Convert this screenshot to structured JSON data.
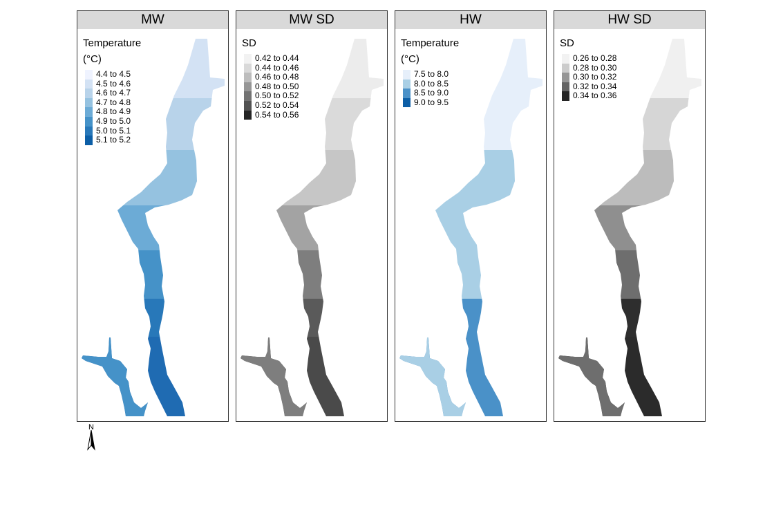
{
  "panels": [
    {
      "title": "MW",
      "legend": {
        "title_lines": [
          "Temperature",
          "(°C)"
        ],
        "items": [
          {
            "label": "4.4 to 4.5",
            "color": "#eff3ff"
          },
          {
            "label": "4.5 to 4.6",
            "color": "#d3e2f4"
          },
          {
            "label": "4.6 to 4.7",
            "color": "#b8d3ea"
          },
          {
            "label": "4.7 to 4.8",
            "color": "#95c2e0"
          },
          {
            "label": "4.8 to 4.9",
            "color": "#6cabd6"
          },
          {
            "label": "4.9 to 5.0",
            "color": "#4592c8"
          },
          {
            "label": "5.0 to 5.1",
            "color": "#2878b9"
          },
          {
            "label": "5.1 to 5.2",
            "color": "#0c5ea6"
          }
        ]
      },
      "zone_colors": [
        "#d3e2f4",
        "#b8d3ea",
        "#95c2e0",
        "#6cabd6",
        "#4592c8",
        "#2878b9",
        "#1f6bb2"
      ]
    },
    {
      "title": "MW SD",
      "legend": {
        "title_lines": [
          "SD"
        ],
        "items": [
          {
            "label": "0.42 to 0.44",
            "color": "#f2f2f2"
          },
          {
            "label": "0.44 to 0.46",
            "color": "#d9d9d9"
          },
          {
            "label": "0.46 to 0.48",
            "color": "#bdbdbd"
          },
          {
            "label": "0.48 to 0.50",
            "color": "#969696"
          },
          {
            "label": "0.50 to 0.52",
            "color": "#737373"
          },
          {
            "label": "0.52 to 0.54",
            "color": "#525252"
          },
          {
            "label": "0.54 to 0.56",
            "color": "#252525"
          }
        ]
      },
      "zone_colors": [
        "#ececec",
        "#dadada",
        "#c6c6c6",
        "#a3a3a3",
        "#7e7e7e",
        "#5a5a5a",
        "#4a4a4a"
      ]
    },
    {
      "title": "HW",
      "legend": {
        "title_lines": [
          "Temperature",
          "(°C)"
        ],
        "items": [
          {
            "label": "7.5 to 8.0",
            "color": "#e6effa"
          },
          {
            "label": "8.0 to 8.5",
            "color": "#a9cfe5"
          },
          {
            "label": "8.5 to 9.0",
            "color": "#4a91c8"
          },
          {
            "label": "9.0 to 9.5",
            "color": "#0c5ea6"
          }
        ]
      },
      "zone_colors": [
        "#e6effa",
        "#e6effa",
        "#a9cfe5",
        "#a9cfe5",
        "#a9cfe5",
        "#4a91c8",
        "#4a91c8"
      ]
    },
    {
      "title": "HW SD",
      "legend": {
        "title_lines": [
          "SD"
        ],
        "items": [
          {
            "label": "0.26 to 0.28",
            "color": "#f2f2f2"
          },
          {
            "label": "0.28 to 0.30",
            "color": "#cccccc"
          },
          {
            "label": "0.30 to 0.32",
            "color": "#969696"
          },
          {
            "label": "0.32 to 0.34",
            "color": "#636363"
          },
          {
            "label": "0.34 to 0.36",
            "color": "#252525"
          }
        ]
      },
      "zone_colors": [
        "#f0f0f0",
        "#d6d6d6",
        "#bcbcbc",
        "#8f8f8f",
        "#6e6e6e",
        "#2e2e2e",
        "#2b2b2b"
      ]
    }
  ],
  "north_arrow": {
    "label": "N",
    "icon": "north-arrow-icon"
  }
}
